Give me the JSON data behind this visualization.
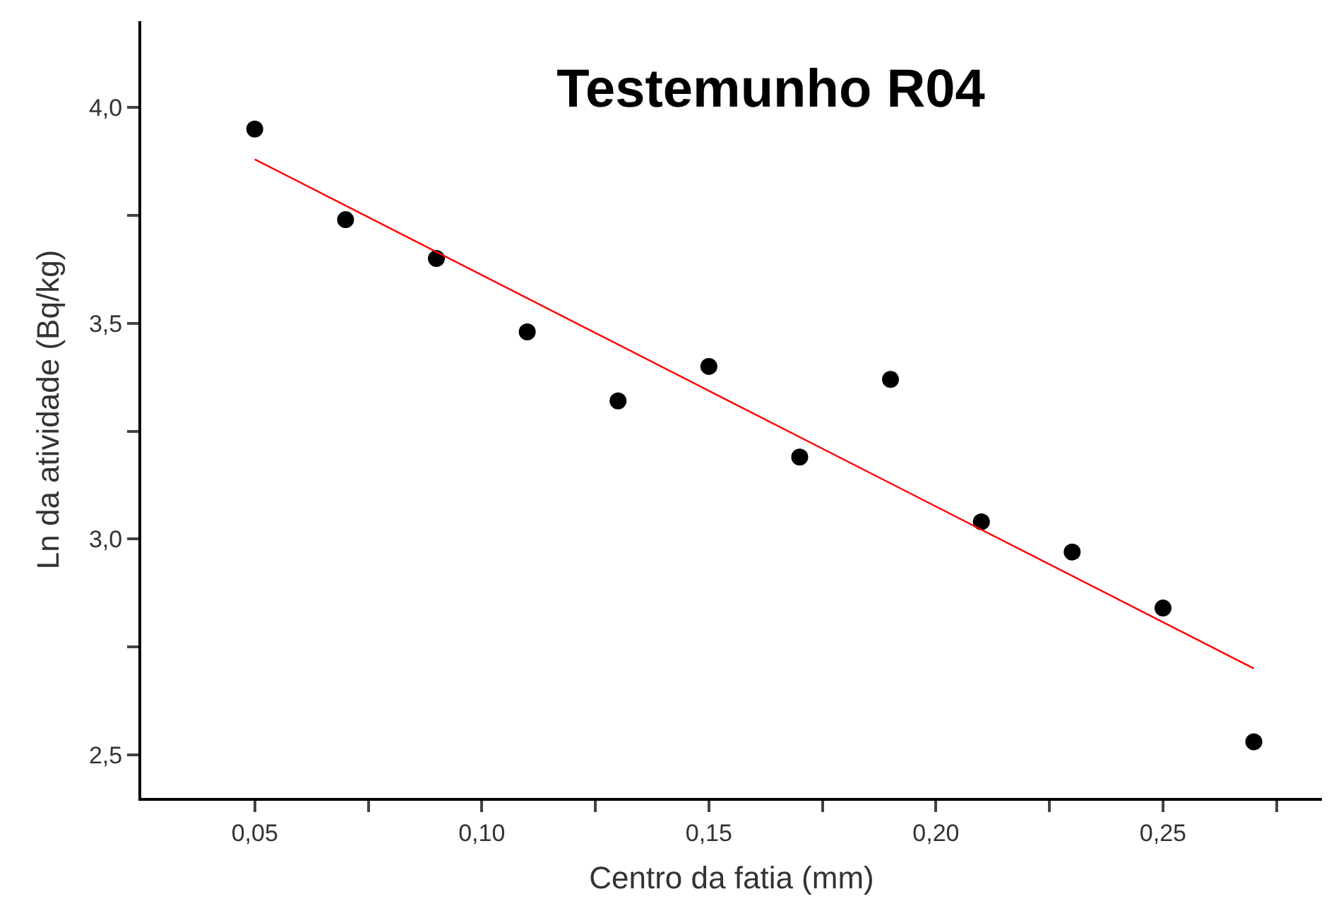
{
  "chart_data": {
    "type": "scatter",
    "title": "Testemunho R04",
    "xlabel": "Centro da fatia (mm)",
    "ylabel": "Ln da atividade (Bq/kg)",
    "x": [
      0.05,
      0.07,
      0.09,
      0.11,
      0.13,
      0.15,
      0.17,
      0.19,
      0.21,
      0.23,
      0.25,
      0.27
    ],
    "series": [
      {
        "color": "#000000",
        "marker": "circle",
        "values": [
          3.95,
          3.74,
          3.65,
          3.48,
          3.32,
          3.4,
          3.19,
          3.37,
          3.04,
          2.97,
          2.84,
          2.53
        ]
      },
      {
        "type": "line",
        "color": "#ff0000",
        "x": [
          0.05,
          0.27
        ],
        "values": [
          3.88,
          2.7
        ]
      }
    ],
    "xlim": [
      0.025,
      0.285
    ],
    "ylim": [
      2.4,
      4.2
    ],
    "xticks": [
      {
        "value": 0.05,
        "label": "0,05"
      },
      {
        "value": 0.075,
        "label": null
      },
      {
        "value": 0.1,
        "label": "0,10"
      },
      {
        "value": 0.125,
        "label": null
      },
      {
        "value": 0.15,
        "label": "0,15"
      },
      {
        "value": 0.175,
        "label": null
      },
      {
        "value": 0.2,
        "label": "0,20"
      },
      {
        "value": 0.225,
        "label": null
      },
      {
        "value": 0.25,
        "label": "0,25"
      },
      {
        "value": 0.275,
        "label": null
      }
    ],
    "yticks": [
      {
        "value": 2.5,
        "label": "2,5"
      },
      {
        "value": 2.75,
        "label": null
      },
      {
        "value": 3.0,
        "label": "3,0"
      },
      {
        "value": 3.25,
        "label": null
      },
      {
        "value": 3.5,
        "label": "3,5"
      },
      {
        "value": 3.75,
        "label": null
      },
      {
        "value": 4.0,
        "label": "4,0"
      }
    ],
    "grid": false,
    "legend": false
  }
}
